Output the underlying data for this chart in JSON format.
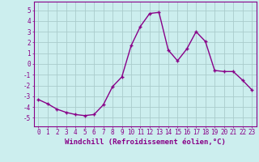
{
  "x": [
    0,
    1,
    2,
    3,
    4,
    5,
    6,
    7,
    8,
    9,
    10,
    11,
    12,
    13,
    14,
    15,
    16,
    17,
    18,
    19,
    20,
    21,
    22,
    23
  ],
  "y": [
    -3.3,
    -3.7,
    -4.2,
    -4.5,
    -4.7,
    -4.8,
    -4.7,
    -3.8,
    -2.1,
    -1.2,
    1.7,
    3.5,
    4.7,
    4.8,
    1.3,
    0.3,
    1.4,
    3.0,
    2.1,
    -0.6,
    -0.7,
    -0.7,
    -1.5,
    -2.4
  ],
  "line_color": "#880088",
  "marker": "+",
  "marker_size": 3,
  "linewidth": 1.0,
  "xlabel": "Windchill (Refroidissement éolien,°C)",
  "xlim": [
    -0.5,
    23.5
  ],
  "ylim": [
    -5.8,
    5.8
  ],
  "yticks": [
    -5,
    -4,
    -3,
    -2,
    -1,
    0,
    1,
    2,
    3,
    4,
    5
  ],
  "xticks": [
    0,
    1,
    2,
    3,
    4,
    5,
    6,
    7,
    8,
    9,
    10,
    11,
    12,
    13,
    14,
    15,
    16,
    17,
    18,
    19,
    20,
    21,
    22,
    23
  ],
  "bg_color": "#cceeee",
  "grid_color": "#aacccc",
  "tick_label_size": 5.5,
  "xlabel_size": 6.5
}
